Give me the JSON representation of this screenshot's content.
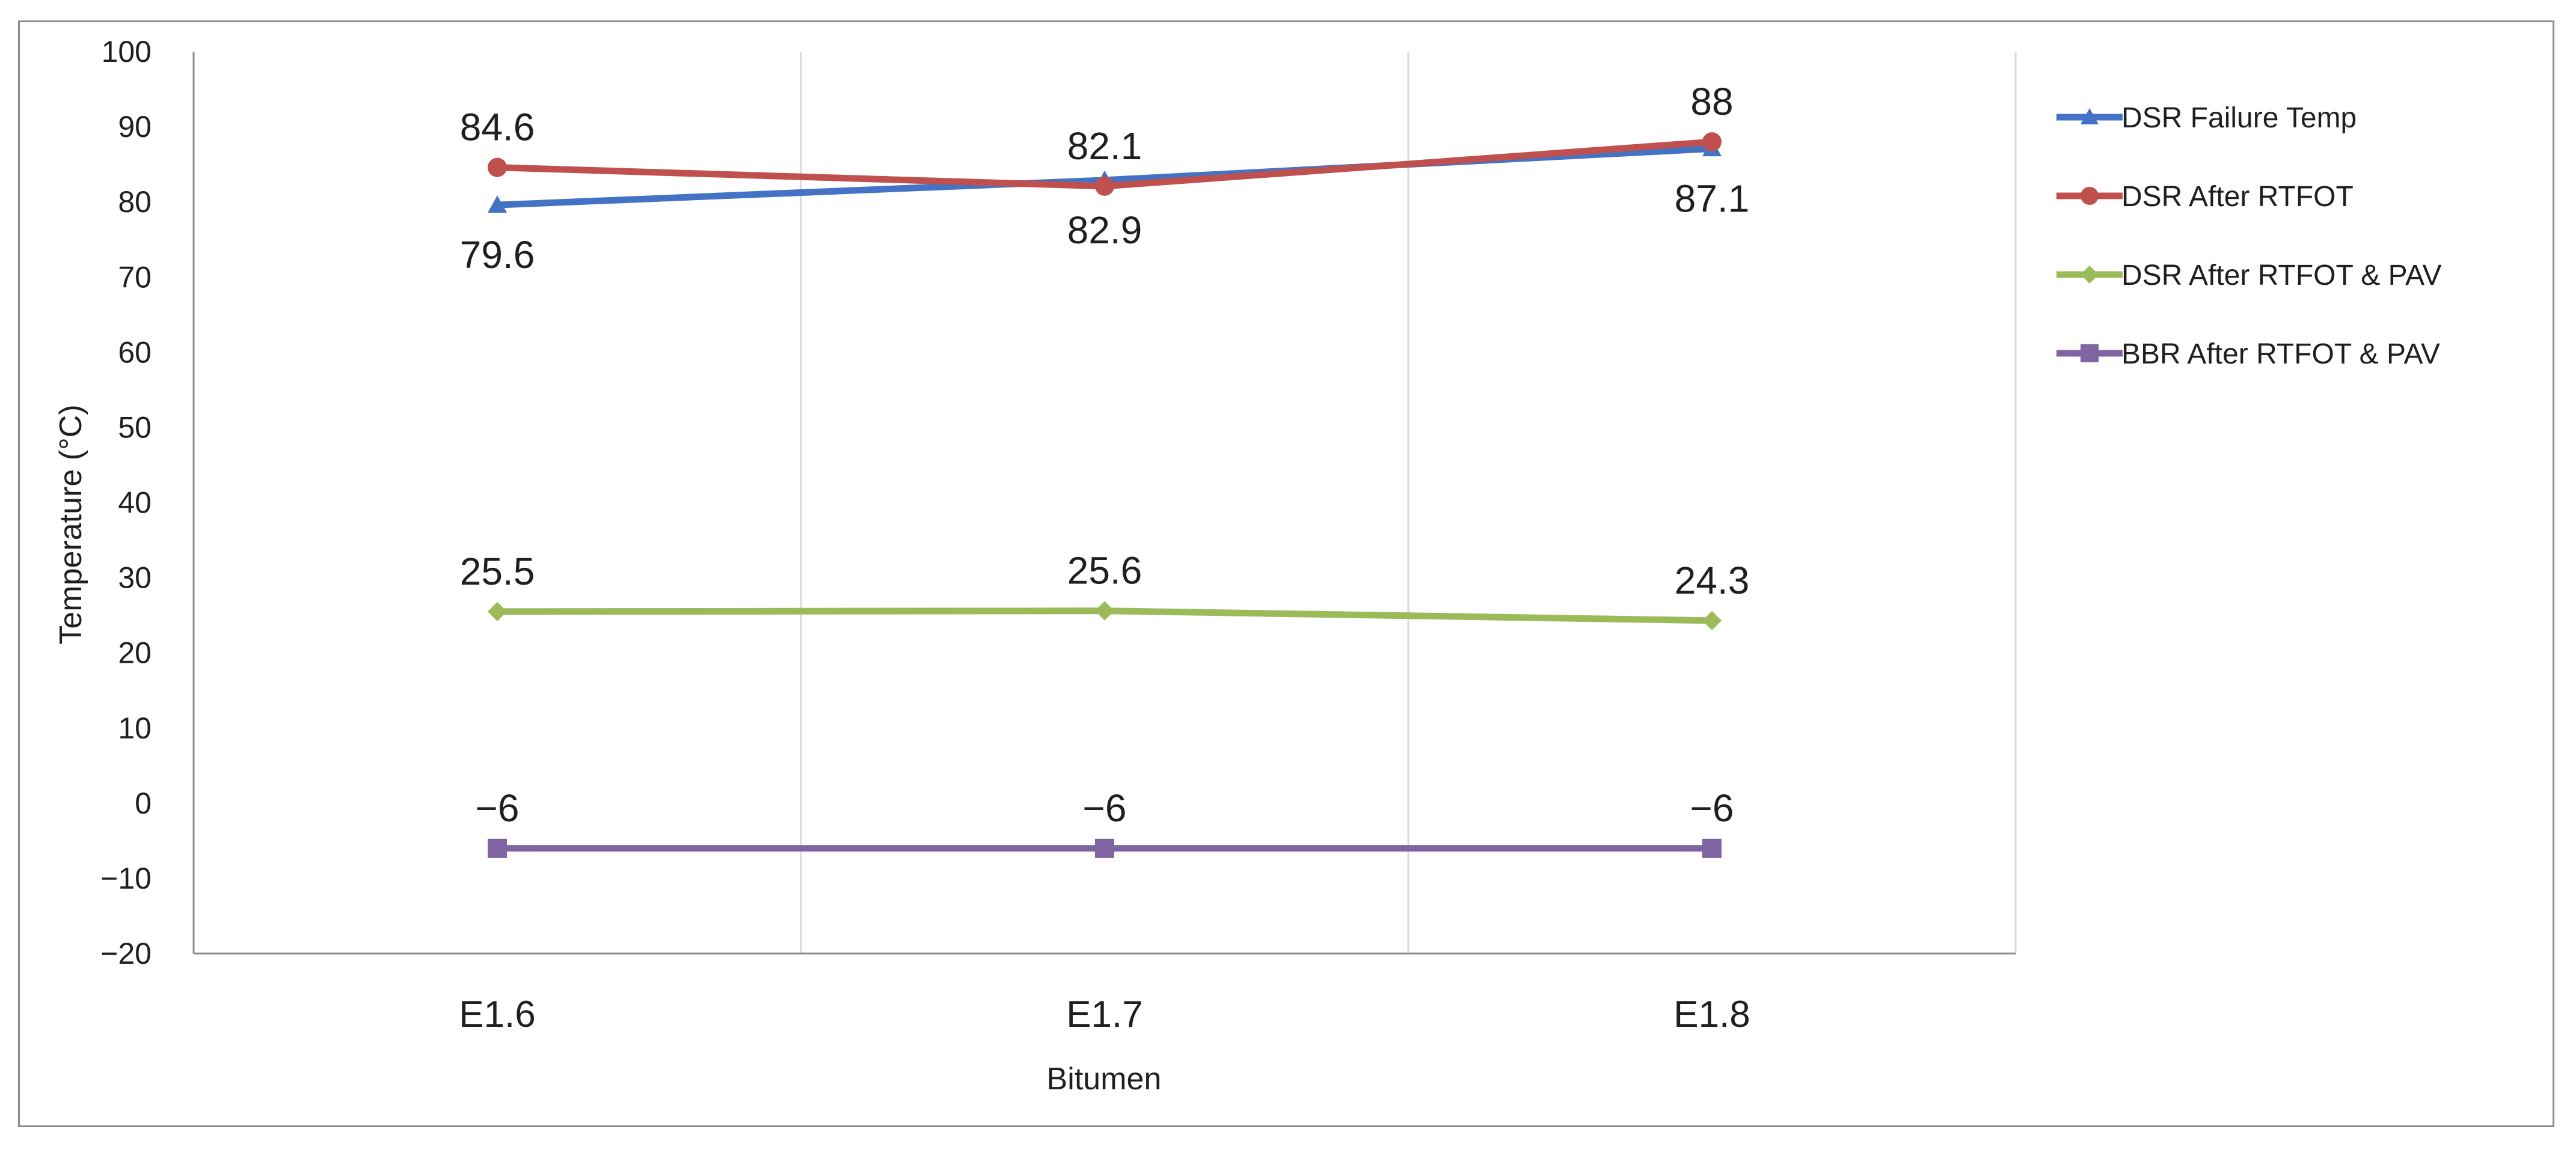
{
  "chart_data": {
    "type": "line",
    "categories": [
      "E1.6",
      "E1.7",
      "E1.8"
    ],
    "xlabel": "Bitumen",
    "ylabel": "Temperature  (°C)",
    "ylim": [
      -20,
      100
    ],
    "ytick_step": 10,
    "ytick_labels": [
      "−20",
      "−10",
      "0",
      "10",
      "20",
      "30",
      "40",
      "50",
      "60",
      "70",
      "80",
      "90",
      "100"
    ],
    "grid": "vertical",
    "legend_position": "right",
    "series": [
      {
        "name": "DSR Failure Temp",
        "values": [
          79.6,
          82.9,
          87.1
        ],
        "labels": [
          "79.6",
          "82.9",
          "87.1"
        ],
        "label_position": "below",
        "color": "#4472c4",
        "marker": "triangle"
      },
      {
        "name": "DSR After RTFOT",
        "values": [
          84.6,
          82.1,
          88
        ],
        "labels": [
          "84.6",
          "82.1",
          "88"
        ],
        "label_position": "above",
        "color": "#c0504d",
        "marker": "circle"
      },
      {
        "name": "DSR After RTFOT & PAV",
        "values": [
          25.5,
          25.6,
          24.3
        ],
        "labels": [
          "25.5",
          "25.6",
          "24.3"
        ],
        "label_position": "above",
        "color": "#9bbb59",
        "marker": "diamond"
      },
      {
        "name": "BBR After RTFOT & PAV",
        "values": [
          -6,
          -6,
          -6
        ],
        "labels": [
          "−6",
          "−6",
          "−6"
        ],
        "label_position": "above",
        "color": "#8064a2",
        "marker": "square"
      }
    ]
  }
}
